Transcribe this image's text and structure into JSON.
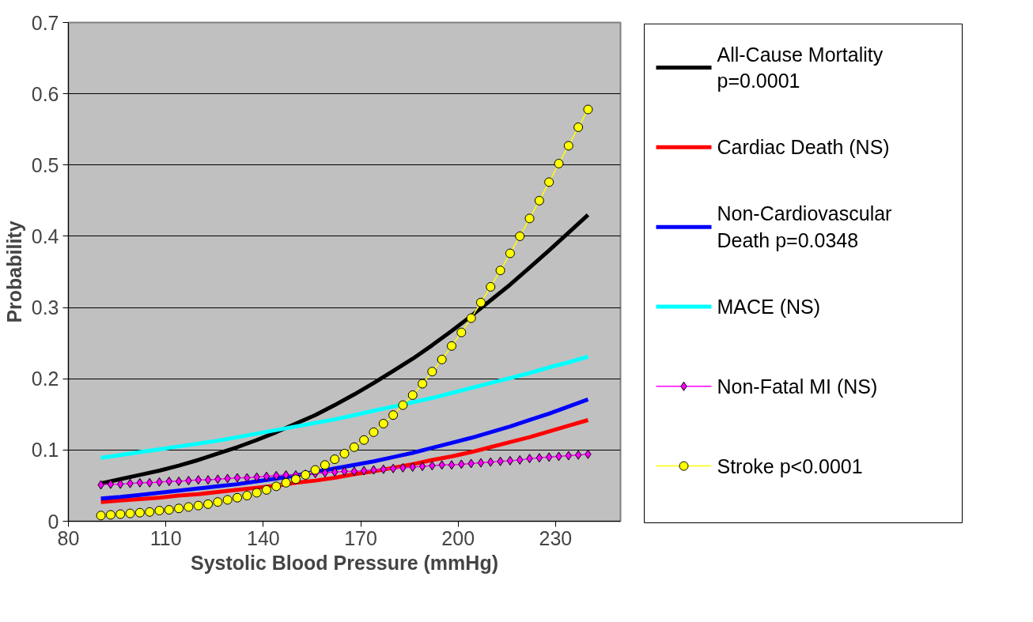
{
  "chart_data": {
    "type": "line",
    "xlabel": "Systolic Blood Pressure (mmHg)",
    "ylabel": "Probability",
    "xlim": [
      80,
      250
    ],
    "xticks": [
      80,
      110,
      140,
      170,
      200,
      230
    ],
    "ylim": [
      0,
      0.7
    ],
    "yticks": [
      0,
      0.1,
      0.2,
      0.3,
      0.4,
      0.5,
      0.6,
      0.7
    ],
    "grid": "y",
    "legend": "right",
    "marker": "none",
    "line_style": "solid",
    "x": [
      90,
      96,
      102,
      108,
      114,
      120,
      126,
      132,
      138,
      144,
      150,
      156,
      162,
      168,
      174,
      180,
      186,
      192,
      198,
      204,
      210,
      216,
      222,
      228,
      234,
      240
    ],
    "series": [
      {
        "name": "All-Cause Mortality p=0.0001",
        "color": "#000000",
        "values": [
          0.053,
          0.059,
          0.065,
          0.071,
          0.078,
          0.086,
          0.095,
          0.104,
          0.114,
          0.125,
          0.137,
          0.149,
          0.163,
          0.178,
          0.194,
          0.211,
          0.228,
          0.247,
          0.267,
          0.288,
          0.31,
          0.332,
          0.356,
          0.38,
          0.405,
          0.43
        ]
      },
      {
        "name": "Cardiac Death (NS)",
        "color": "#ff0000",
        "values": [
          0.027,
          0.029,
          0.031,
          0.033,
          0.036,
          0.038,
          0.041,
          0.044,
          0.047,
          0.05,
          0.054,
          0.057,
          0.061,
          0.066,
          0.07,
          0.075,
          0.08,
          0.086,
          0.091,
          0.097,
          0.104,
          0.111,
          0.118,
          0.126,
          0.134,
          0.142
        ]
      },
      {
        "name": "Non-Cardiovascular Death p=0.0348",
        "color": "#0000ff",
        "values": [
          0.032,
          0.034,
          0.037,
          0.04,
          0.043,
          0.046,
          0.049,
          0.052,
          0.056,
          0.06,
          0.064,
          0.069,
          0.074,
          0.079,
          0.084,
          0.09,
          0.096,
          0.103,
          0.11,
          0.117,
          0.125,
          0.133,
          0.142,
          0.151,
          0.161,
          0.171
        ]
      },
      {
        "name": "MACE (NS)",
        "color": "#00ffff",
        "values": [
          0.089,
          0.093,
          0.097,
          0.101,
          0.105,
          0.109,
          0.113,
          0.118,
          0.123,
          0.128,
          0.133,
          0.138,
          0.143,
          0.149,
          0.155,
          0.161,
          0.167,
          0.173,
          0.18,
          0.187,
          0.194,
          0.201,
          0.208,
          0.216,
          0.223,
          0.231
        ]
      },
      {
        "name": "Non-Fatal MI (NS)",
        "color": "#ff00ff",
        "marker": "diamond",
        "x": [
          90,
          93,
          96,
          99,
          102,
          105,
          108,
          111,
          114,
          117,
          120,
          123,
          126,
          129,
          132,
          135,
          138,
          141,
          144,
          147,
          150,
          153,
          156,
          159,
          162,
          165,
          168,
          171,
          174,
          177,
          180,
          183,
          186,
          189,
          192,
          195,
          198,
          201,
          204,
          207,
          210,
          213,
          216,
          219,
          222,
          225,
          228,
          231,
          234,
          237,
          240
        ],
        "values": [
          0.051,
          0.052,
          0.052,
          0.053,
          0.054,
          0.054,
          0.055,
          0.056,
          0.056,
          0.057,
          0.058,
          0.058,
          0.059,
          0.06,
          0.061,
          0.061,
          0.062,
          0.063,
          0.064,
          0.065,
          0.065,
          0.066,
          0.067,
          0.068,
          0.069,
          0.07,
          0.07,
          0.071,
          0.072,
          0.073,
          0.074,
          0.075,
          0.076,
          0.077,
          0.078,
          0.079,
          0.079,
          0.08,
          0.081,
          0.082,
          0.083,
          0.084,
          0.085,
          0.086,
          0.088,
          0.089,
          0.09,
          0.091,
          0.092,
          0.093,
          0.094
        ]
      },
      {
        "name": "Stroke p<0.0001",
        "color": "#ffff00",
        "marker": "circle",
        "x": [
          90,
          93,
          96,
          99,
          102,
          105,
          108,
          111,
          114,
          117,
          120,
          123,
          126,
          129,
          132,
          135,
          138,
          141,
          144,
          147,
          150,
          153,
          156,
          159,
          162,
          165,
          168,
          171,
          174,
          177,
          180,
          183,
          186,
          189,
          192,
          195,
          198,
          201,
          204,
          207,
          210,
          213,
          216,
          219,
          222,
          225,
          228,
          231,
          234,
          237,
          240
        ],
        "values": [
          0.008,
          0.009,
          0.01,
          0.011,
          0.012,
          0.013,
          0.015,
          0.016,
          0.018,
          0.02,
          0.022,
          0.024,
          0.027,
          0.03,
          0.033,
          0.036,
          0.04,
          0.044,
          0.049,
          0.054,
          0.059,
          0.065,
          0.072,
          0.079,
          0.087,
          0.095,
          0.104,
          0.114,
          0.125,
          0.137,
          0.149,
          0.163,
          0.177,
          0.193,
          0.21,
          0.227,
          0.246,
          0.265,
          0.285,
          0.307,
          0.329,
          0.352,
          0.376,
          0.4,
          0.425,
          0.45,
          0.476,
          0.502,
          0.527,
          0.553,
          0.578
        ]
      }
    ]
  }
}
